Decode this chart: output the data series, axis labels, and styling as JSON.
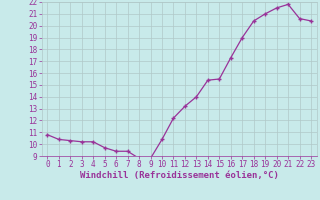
{
  "hours": [
    0,
    1,
    2,
    3,
    4,
    5,
    6,
    7,
    8,
    9,
    10,
    11,
    12,
    13,
    14,
    15,
    16,
    17,
    18,
    19,
    20,
    21,
    22,
    23
  ],
  "values": [
    10.8,
    10.4,
    10.3,
    10.2,
    10.2,
    9.7,
    9.4,
    9.4,
    8.8,
    8.8,
    10.4,
    12.2,
    13.2,
    14.0,
    15.4,
    15.5,
    17.3,
    19.0,
    20.4,
    21.0,
    21.5,
    21.8,
    20.6,
    20.4
  ],
  "xlabel": "Windchill (Refroidissement éolien,°C)",
  "ylim": [
    9,
    22
  ],
  "xlim": [
    -0.5,
    23.5
  ],
  "yticks": [
    9,
    10,
    11,
    12,
    13,
    14,
    15,
    16,
    17,
    18,
    19,
    20,
    21,
    22
  ],
  "xticks": [
    0,
    1,
    2,
    3,
    4,
    5,
    6,
    7,
    8,
    9,
    10,
    11,
    12,
    13,
    14,
    15,
    16,
    17,
    18,
    19,
    20,
    21,
    22,
    23
  ],
  "line_color": "#993399",
  "marker": "+",
  "bg_color": "#c8eaea",
  "grid_color": "#b0c8c8",
  "tick_color": "#993399",
  "tick_font_size": 5.5,
  "xlabel_font_size": 6.5
}
